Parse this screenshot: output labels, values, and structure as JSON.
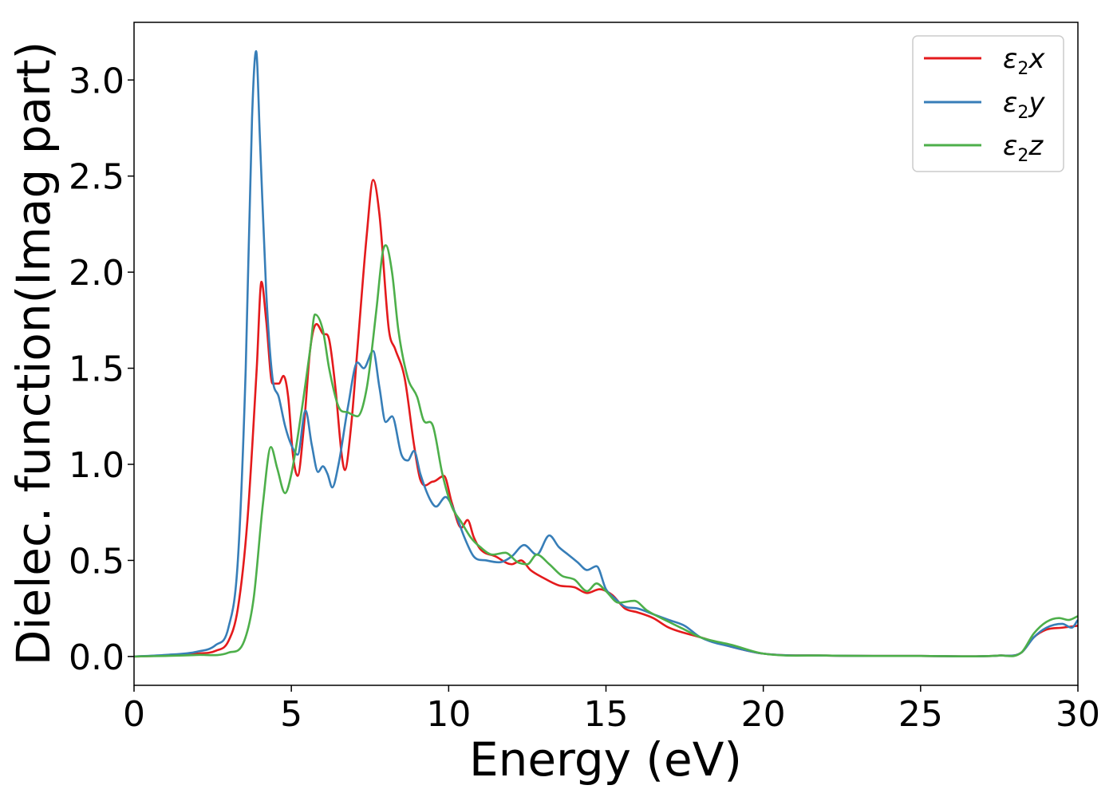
{
  "chart_data": {
    "type": "line",
    "title": "",
    "xlabel": "Energy (eV)",
    "ylabel": "Dielec. function(Imag part)",
    "xlim": [
      0,
      30
    ],
    "ylim": [
      -0.15,
      3.3
    ],
    "x_ticks": [
      0,
      5,
      10,
      15,
      20,
      25,
      30
    ],
    "y_ticks": [
      0.0,
      0.5,
      1.0,
      1.5,
      2.0,
      2.5,
      3.0
    ],
    "x_tick_labels": [
      "0",
      "5",
      "10",
      "15",
      "20",
      "25",
      "30"
    ],
    "y_tick_labels": [
      "0.0",
      "0.5",
      "1.0",
      "1.5",
      "2.0",
      "2.5",
      "3.0"
    ],
    "grid": false,
    "legend": {
      "position": "top-right",
      "entries": [
        {
          "base": "ε",
          "sub": "2",
          "suffix": "x"
        },
        {
          "base": "ε",
          "sub": "2",
          "suffix": "y"
        },
        {
          "base": "ε",
          "sub": "2",
          "suffix": "z"
        }
      ]
    },
    "series": [
      {
        "name": "ε2x",
        "color": "#e41a1c",
        "points": [
          [
            0,
            0
          ],
          [
            1,
            0.005
          ],
          [
            2,
            0.015
          ],
          [
            2.6,
            0.03
          ],
          [
            3,
            0.08
          ],
          [
            3.3,
            0.25
          ],
          [
            3.6,
            0.7
          ],
          [
            3.9,
            1.5
          ],
          [
            4.05,
            1.95
          ],
          [
            4.2,
            1.75
          ],
          [
            4.4,
            1.42
          ],
          [
            4.6,
            1.42
          ],
          [
            4.75,
            1.46
          ],
          [
            4.9,
            1.35
          ],
          [
            5.05,
            1.05
          ],
          [
            5.2,
            0.94
          ],
          [
            5.4,
            1.2
          ],
          [
            5.6,
            1.6
          ],
          [
            5.8,
            1.73
          ],
          [
            6.0,
            1.68
          ],
          [
            6.2,
            1.65
          ],
          [
            6.4,
            1.4
          ],
          [
            6.6,
            1.05
          ],
          [
            6.7,
            0.97
          ],
          [
            6.9,
            1.2
          ],
          [
            7.1,
            1.6
          ],
          [
            7.4,
            2.2
          ],
          [
            7.6,
            2.48
          ],
          [
            7.8,
            2.3
          ],
          [
            8.1,
            1.7
          ],
          [
            8.3,
            1.6
          ],
          [
            8.6,
            1.45
          ],
          [
            8.9,
            1.1
          ],
          [
            9.1,
            0.92
          ],
          [
            9.5,
            0.91
          ],
          [
            9.85,
            0.94
          ],
          [
            10.1,
            0.8
          ],
          [
            10.4,
            0.67
          ],
          [
            10.6,
            0.71
          ],
          [
            10.8,
            0.62
          ],
          [
            11.0,
            0.56
          ],
          [
            11.5,
            0.52
          ],
          [
            12.0,
            0.48
          ],
          [
            12.3,
            0.5
          ],
          [
            12.6,
            0.45
          ],
          [
            13.0,
            0.41
          ],
          [
            13.5,
            0.37
          ],
          [
            14.0,
            0.36
          ],
          [
            14.4,
            0.33
          ],
          [
            14.8,
            0.35
          ],
          [
            15.2,
            0.32
          ],
          [
            15.6,
            0.25
          ],
          [
            16.0,
            0.23
          ],
          [
            16.5,
            0.2
          ],
          [
            17.0,
            0.15
          ],
          [
            18.0,
            0.1
          ],
          [
            19.0,
            0.05
          ],
          [
            20,
            0.015
          ],
          [
            22,
            0.005
          ],
          [
            25,
            0.003
          ],
          [
            27.5,
            0.005
          ],
          [
            28.2,
            0.02
          ],
          [
            28.6,
            0.1
          ],
          [
            29,
            0.14
          ],
          [
            29.5,
            0.15
          ],
          [
            30,
            0.16
          ]
        ]
      },
      {
        "name": "ε2y",
        "color": "#377eb8",
        "points": [
          [
            0,
            0
          ],
          [
            1,
            0.008
          ],
          [
            2,
            0.025
          ],
          [
            2.6,
            0.06
          ],
          [
            3,
            0.15
          ],
          [
            3.3,
            0.5
          ],
          [
            3.55,
            1.5
          ],
          [
            3.75,
            2.8
          ],
          [
            3.88,
            3.15
          ],
          [
            4.0,
            2.7
          ],
          [
            4.2,
            1.9
          ],
          [
            4.4,
            1.45
          ],
          [
            4.6,
            1.35
          ],
          [
            4.8,
            1.2
          ],
          [
            5.0,
            1.1
          ],
          [
            5.2,
            1.05
          ],
          [
            5.45,
            1.28
          ],
          [
            5.65,
            1.1
          ],
          [
            5.85,
            0.96
          ],
          [
            6.0,
            0.99
          ],
          [
            6.15,
            0.95
          ],
          [
            6.3,
            0.88
          ],
          [
            6.5,
            1.0
          ],
          [
            6.8,
            1.3
          ],
          [
            7.1,
            1.53
          ],
          [
            7.3,
            1.5
          ],
          [
            7.6,
            1.59
          ],
          [
            7.8,
            1.4
          ],
          [
            8.0,
            1.22
          ],
          [
            8.2,
            1.25
          ],
          [
            8.5,
            1.05
          ],
          [
            8.7,
            1.02
          ],
          [
            8.9,
            1.07
          ],
          [
            9.1,
            0.95
          ],
          [
            9.4,
            0.82
          ],
          [
            9.6,
            0.78
          ],
          [
            9.9,
            0.83
          ],
          [
            10.2,
            0.75
          ],
          [
            10.5,
            0.62
          ],
          [
            10.8,
            0.52
          ],
          [
            11.2,
            0.5
          ],
          [
            11.6,
            0.49
          ],
          [
            12.0,
            0.52
          ],
          [
            12.4,
            0.58
          ],
          [
            12.8,
            0.53
          ],
          [
            13.2,
            0.63
          ],
          [
            13.5,
            0.57
          ],
          [
            13.8,
            0.53
          ],
          [
            14.1,
            0.49
          ],
          [
            14.4,
            0.45
          ],
          [
            14.7,
            0.47
          ],
          [
            15.0,
            0.35
          ],
          [
            15.3,
            0.3
          ],
          [
            15.6,
            0.26
          ],
          [
            16.0,
            0.25
          ],
          [
            16.5,
            0.22
          ],
          [
            17.0,
            0.19
          ],
          [
            17.5,
            0.16
          ],
          [
            18.0,
            0.1
          ],
          [
            19.0,
            0.05
          ],
          [
            20,
            0.015
          ],
          [
            22,
            0.005
          ],
          [
            25,
            0.003
          ],
          [
            27.5,
            0.005
          ],
          [
            28.2,
            0.02
          ],
          [
            28.6,
            0.1
          ],
          [
            29,
            0.15
          ],
          [
            29.5,
            0.17
          ],
          [
            29.8,
            0.15
          ],
          [
            30,
            0.19
          ]
        ]
      },
      {
        "name": "ε2z",
        "color": "#4daf4a",
        "points": [
          [
            0,
            0
          ],
          [
            1,
            0.003
          ],
          [
            2,
            0.008
          ],
          [
            3,
            0.02
          ],
          [
            3.5,
            0.08
          ],
          [
            3.8,
            0.3
          ],
          [
            4.1,
            0.8
          ],
          [
            4.35,
            1.09
          ],
          [
            4.55,
            0.98
          ],
          [
            4.8,
            0.85
          ],
          [
            5.0,
            0.95
          ],
          [
            5.3,
            1.25
          ],
          [
            5.6,
            1.6
          ],
          [
            5.75,
            1.78
          ],
          [
            6.0,
            1.7
          ],
          [
            6.2,
            1.5
          ],
          [
            6.5,
            1.3
          ],
          [
            6.8,
            1.27
          ],
          [
            7.1,
            1.25
          ],
          [
            7.4,
            1.4
          ],
          [
            7.7,
            1.8
          ],
          [
            7.9,
            2.1
          ],
          [
            8.0,
            2.14
          ],
          [
            8.2,
            2.0
          ],
          [
            8.4,
            1.7
          ],
          [
            8.7,
            1.45
          ],
          [
            9.0,
            1.35
          ],
          [
            9.2,
            1.23
          ],
          [
            9.5,
            1.2
          ],
          [
            9.8,
            0.95
          ],
          [
            10.1,
            0.78
          ],
          [
            10.4,
            0.7
          ],
          [
            10.7,
            0.62
          ],
          [
            11.0,
            0.57
          ],
          [
            11.4,
            0.53
          ],
          [
            11.8,
            0.54
          ],
          [
            12.2,
            0.49
          ],
          [
            12.5,
            0.48
          ],
          [
            12.8,
            0.53
          ],
          [
            13.2,
            0.48
          ],
          [
            13.6,
            0.42
          ],
          [
            14.0,
            0.4
          ],
          [
            14.4,
            0.34
          ],
          [
            14.7,
            0.38
          ],
          [
            15.0,
            0.34
          ],
          [
            15.4,
            0.28
          ],
          [
            15.9,
            0.29
          ],
          [
            16.3,
            0.24
          ],
          [
            17.0,
            0.18
          ],
          [
            17.5,
            0.14
          ],
          [
            18.0,
            0.1
          ],
          [
            19.0,
            0.06
          ],
          [
            20,
            0.015
          ],
          [
            22,
            0.005
          ],
          [
            25,
            0.003
          ],
          [
            27.5,
            0.005
          ],
          [
            28.2,
            0.02
          ],
          [
            28.6,
            0.12
          ],
          [
            29,
            0.18
          ],
          [
            29.4,
            0.2
          ],
          [
            29.7,
            0.19
          ],
          [
            30,
            0.21
          ]
        ]
      }
    ]
  }
}
